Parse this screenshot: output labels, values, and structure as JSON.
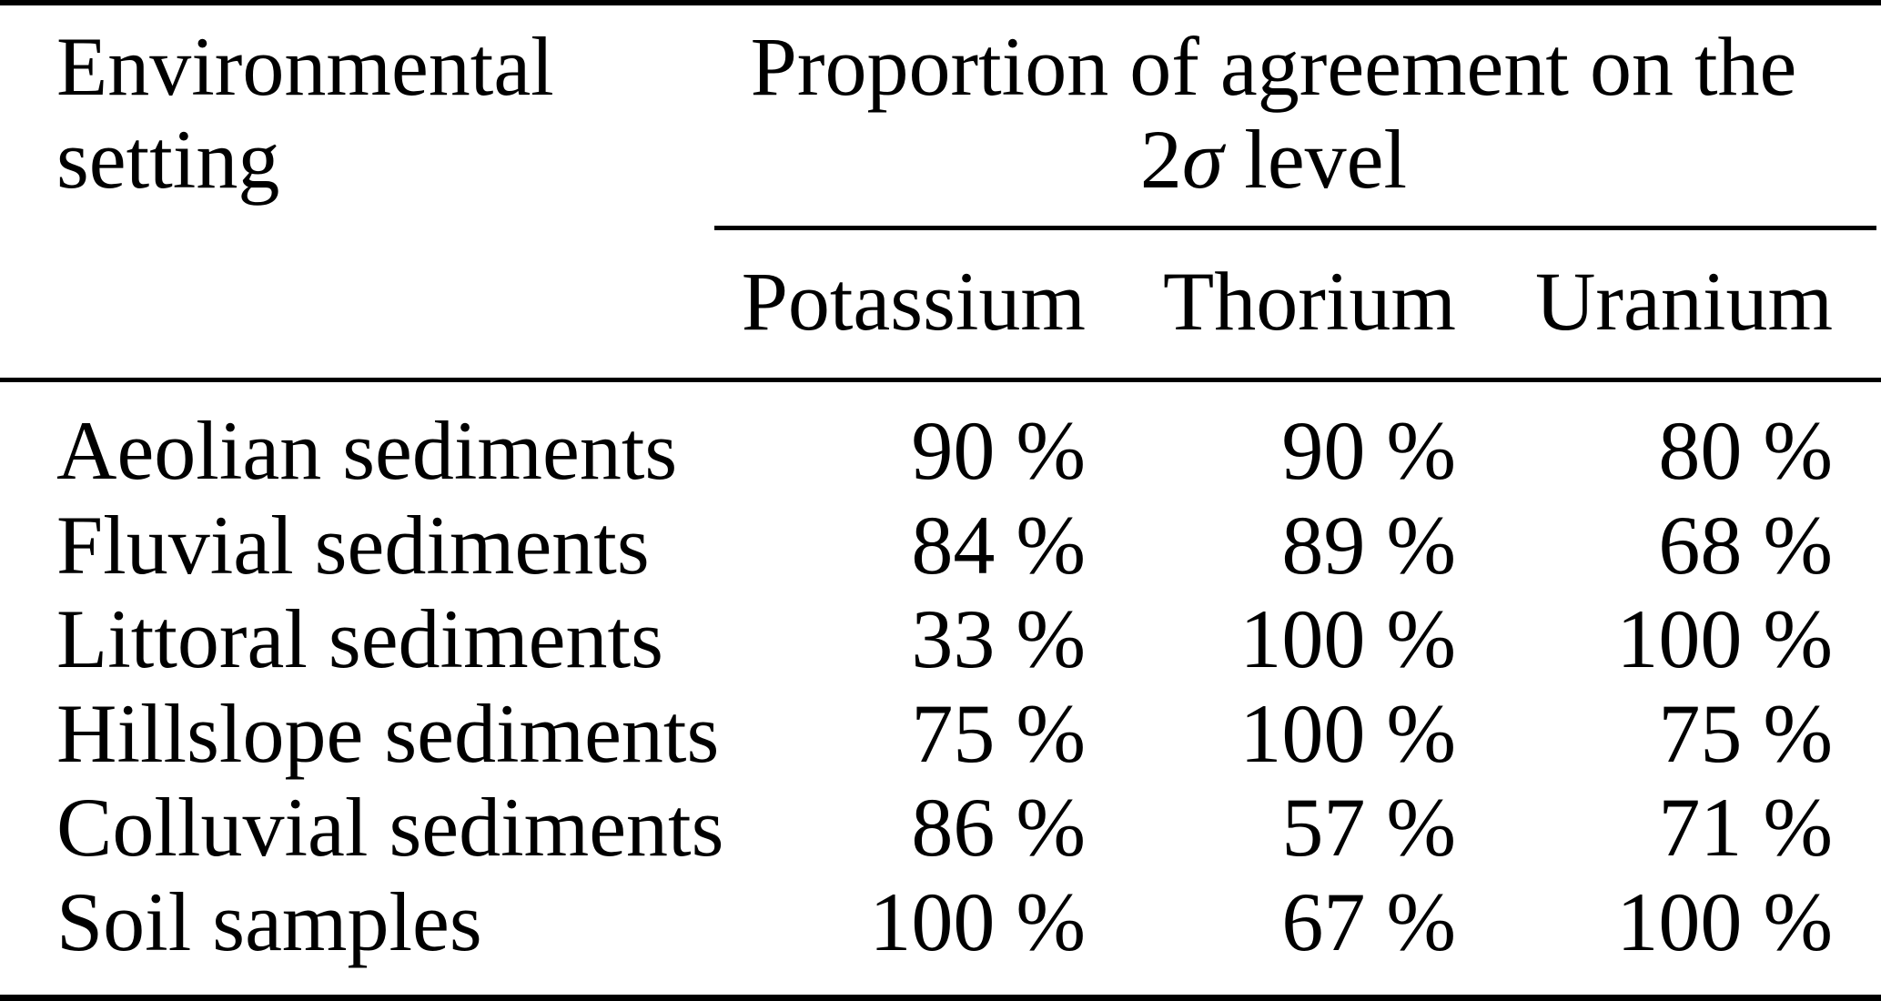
{
  "page": {
    "background_color": "#ffffff",
    "text_color": "#000000",
    "rule_color": "#000000"
  },
  "table": {
    "row_header_column": {
      "title": "Environmental setting"
    },
    "group_header": {
      "line1": "Proportion of agreement on the",
      "line2_prefix": "2",
      "line2_sigma": "σ",
      "line2_suffix": " level"
    },
    "columns": [
      "Potassium",
      "Thorium",
      "Uranium"
    ],
    "rows": [
      {
        "setting": "Aeolian sediments",
        "potassium": "90 %",
        "thorium": "90 %",
        "uranium": "80 %"
      },
      {
        "setting": "Fluvial sediments",
        "potassium": "84 %",
        "thorium": "89 %",
        "uranium": "68 %"
      },
      {
        "setting": "Littoral sediments",
        "potassium": "33 %",
        "thorium": "100 %",
        "uranium": "100 %"
      },
      {
        "setting": "Hillslope sediments",
        "potassium": "75 %",
        "thorium": "100 %",
        "uranium": "75 %"
      },
      {
        "setting": "Colluvial sediments",
        "potassium": "86 %",
        "thorium": "57 %",
        "uranium": "71 %"
      },
      {
        "setting": "Soil samples",
        "potassium": "100 %",
        "thorium": "67 %",
        "uranium": "100 %"
      }
    ]
  }
}
